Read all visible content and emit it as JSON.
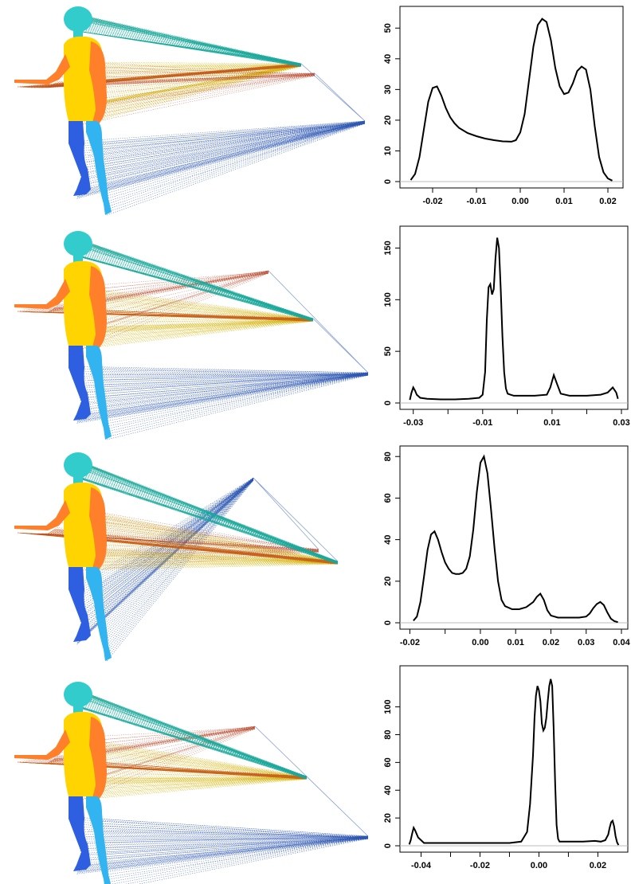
{
  "figure_colors": {
    "head": "#33cccc",
    "torso": "#ffd400",
    "arm": "#ff7f2a",
    "left_leg": "#2d5fe0",
    "right_leg": "#31b4f0",
    "ray_teal": "#1aa89a",
    "ray_orange": "#c8621a",
    "ray_yellow": "#d2b100",
    "ray_blue": "#2a55b0",
    "ray_red": "#b23a1c"
  },
  "chart_data": [
    {
      "type": "line",
      "title": "",
      "xlabel": "",
      "ylabel": "",
      "xlim": [
        -0.026,
        0.022
      ],
      "ylim": [
        0,
        55
      ],
      "x_ticks": [
        -0.02,
        -0.01,
        0.0,
        0.01,
        0.02
      ],
      "x_tick_labels": [
        "-0.02",
        "-0.01",
        "0.00",
        "0.01",
        "0.02"
      ],
      "y_ticks": [
        0,
        10,
        20,
        30,
        40,
        50
      ],
      "y_tick_labels": [
        "0",
        "10",
        "20",
        "30",
        "40",
        "50"
      ],
      "x": [
        -0.025,
        -0.024,
        -0.023,
        -0.022,
        -0.021,
        -0.02,
        -0.019,
        -0.018,
        -0.017,
        -0.016,
        -0.015,
        -0.014,
        -0.012,
        -0.01,
        -0.008,
        -0.006,
        -0.004,
        -0.002,
        -0.001,
        0.0,
        0.001,
        0.002,
        0.003,
        0.004,
        0.005,
        0.006,
        0.007,
        0.008,
        0.009,
        0.01,
        0.011,
        0.012,
        0.013,
        0.014,
        0.015,
        0.016,
        0.017,
        0.018,
        0.019,
        0.02,
        0.021
      ],
      "y": [
        0.5,
        2.5,
        8,
        17,
        26,
        30.5,
        31,
        28,
        24,
        21,
        19,
        17.5,
        15.8,
        14.8,
        14,
        13.5,
        13.1,
        13,
        13.5,
        16,
        22,
        33,
        44,
        51,
        53,
        52,
        46,
        37,
        31,
        28.5,
        29,
        32,
        36,
        37.5,
        36.5,
        30,
        18,
        8,
        3,
        1,
        0.3
      ]
    },
    {
      "type": "line",
      "title": "",
      "xlabel": "",
      "ylabel": "",
      "xlim": [
        -0.032,
        0.03
      ],
      "ylim": [
        0,
        165
      ],
      "x_ticks": [
        -0.03,
        -0.01,
        0.01,
        0.03
      ],
      "x_tick_labels": [
        "-0.03",
        "-0.01",
        "0.01",
        "0.03"
      ],
      "x_minor_ticks": [
        -0.02,
        0.0,
        0.02
      ],
      "y_ticks": [
        0,
        50,
        100,
        150
      ],
      "y_tick_labels": [
        "0",
        "50",
        "100",
        "150"
      ],
      "x": [
        -0.031,
        -0.0305,
        -0.03,
        -0.0295,
        -0.029,
        -0.028,
        -0.026,
        -0.022,
        -0.018,
        -0.014,
        -0.011,
        -0.01,
        -0.0093,
        -0.0088,
        -0.0083,
        -0.0078,
        -0.0073,
        -0.0068,
        -0.0063,
        -0.0058,
        -0.0053,
        -0.0048,
        -0.0043,
        -0.0038,
        -0.0033,
        -0.0028,
        -0.002,
        -0.001,
        0.002,
        0.005,
        0.0085,
        0.0095,
        0.0105,
        0.0115,
        0.0125,
        0.015,
        0.02,
        0.024,
        0.026,
        0.0275,
        0.0285,
        0.029
      ],
      "y": [
        3,
        10,
        15,
        12,
        8,
        5,
        4,
        3.5,
        3.5,
        4,
        5,
        8,
        30,
        80,
        112,
        115,
        105,
        110,
        140,
        160,
        150,
        110,
        65,
        30,
        14,
        9,
        8,
        7,
        7,
        7,
        8,
        15,
        27,
        18,
        9,
        7,
        7,
        8,
        10,
        15,
        10,
        4
      ]
    },
    {
      "type": "line",
      "title": "",
      "xlabel": "",
      "ylabel": "",
      "xlim": [
        -0.021,
        0.04
      ],
      "ylim": [
        0,
        82
      ],
      "x_ticks": [
        -0.02,
        0.0,
        0.01,
        0.02,
        0.03,
        0.04
      ],
      "x_tick_labels": [
        "-0.02",
        "0.00",
        "0.01",
        "0.02",
        "0.03",
        "0.04"
      ],
      "x_minor_ticks": [
        -0.01
      ],
      "y_ticks": [
        0,
        20,
        40,
        60,
        80
      ],
      "y_tick_labels": [
        "0",
        "20",
        "40",
        "60",
        "80"
      ],
      "x": [
        -0.019,
        -0.018,
        -0.017,
        -0.016,
        -0.015,
        -0.014,
        -0.013,
        -0.012,
        -0.011,
        -0.01,
        -0.009,
        -0.008,
        -0.007,
        -0.006,
        -0.005,
        -0.004,
        -0.003,
        -0.002,
        -0.001,
        0.0,
        0.001,
        0.002,
        0.003,
        0.004,
        0.005,
        0.006,
        0.007,
        0.009,
        0.011,
        0.013,
        0.015,
        0.016,
        0.017,
        0.018,
        0.019,
        0.02,
        0.022,
        0.025,
        0.028,
        0.03,
        0.031,
        0.032,
        0.033,
        0.034,
        0.035,
        0.036,
        0.037,
        0.038,
        0.039
      ],
      "y": [
        1,
        3,
        10,
        22,
        35,
        42.5,
        44,
        40,
        34,
        29,
        26,
        24,
        23.5,
        23.5,
        24,
        26,
        32,
        45,
        63,
        77,
        80,
        72,
        55,
        36,
        20,
        11,
        8,
        6.5,
        6.5,
        7.5,
        10,
        12.5,
        14,
        11,
        6,
        3.5,
        2.5,
        2.5,
        2.5,
        3,
        4.5,
        7,
        9,
        10,
        8.5,
        5,
        2,
        0.8,
        0.3
      ]
    },
    {
      "type": "line",
      "title": "",
      "xlabel": "",
      "ylabel": "",
      "xlim": [
        -0.045,
        0.028
      ],
      "ylim": [
        0,
        125
      ],
      "x_ticks": [
        -0.04,
        -0.02,
        0.0,
        0.02
      ],
      "x_tick_labels": [
        "-0.04",
        "-0.02",
        "0.00",
        "0.02"
      ],
      "x_minor_ticks": [
        -0.03,
        -0.01,
        0.01
      ],
      "y_ticks": [
        0,
        20,
        40,
        60,
        80,
        100
      ],
      "y_tick_labels": [
        "0",
        "20",
        "40",
        "60",
        "80",
        "100"
      ],
      "x": [
        -0.044,
        -0.0435,
        -0.043,
        -0.0425,
        -0.042,
        -0.041,
        -0.04,
        -0.039,
        -0.036,
        -0.03,
        -0.02,
        -0.01,
        -0.006,
        -0.004,
        -0.003,
        -0.002,
        -0.0015,
        -0.001,
        -0.0005,
        0.0,
        0.0005,
        0.001,
        0.0015,
        0.002,
        0.0025,
        0.003,
        0.0035,
        0.004,
        0.0045,
        0.005,
        0.0055,
        0.006,
        0.0065,
        0.007,
        0.008,
        0.01,
        0.015,
        0.019,
        0.021,
        0.0225,
        0.0235,
        0.024,
        0.0245,
        0.025,
        0.0255,
        0.026,
        0.0265,
        0.027
      ],
      "y": [
        1,
        4,
        9,
        13,
        11,
        6,
        4,
        2,
        2,
        2,
        2,
        2,
        3,
        10,
        30,
        65,
        92,
        108,
        115,
        112,
        104,
        88,
        83,
        85,
        92,
        104,
        115,
        120,
        115,
        85,
        45,
        15,
        5,
        3,
        3,
        3,
        3,
        3.5,
        3,
        4,
        8,
        13,
        17,
        18,
        14,
        7,
        2.5,
        0.5
      ]
    }
  ]
}
